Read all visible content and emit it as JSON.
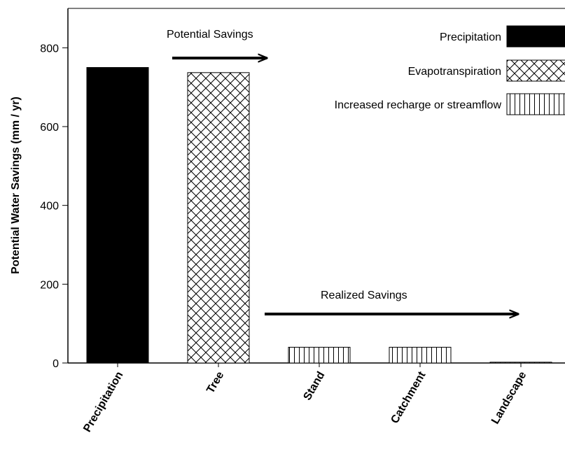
{
  "chart_data": {
    "type": "bar",
    "categories": [
      "Precipitation",
      "Tree",
      "Stand",
      "Catchment",
      "Landscape"
    ],
    "values": [
      750,
      737,
      40,
      40,
      2
    ],
    "bar_types": [
      "Precipitation",
      "Evapotranspiration",
      "Increased recharge or streamflow",
      "Increased recharge or streamflow",
      "Increased recharge or streamflow"
    ],
    "ylabel": "Potential Water Savings (mm / yr)",
    "ylim": [
      0,
      900
    ],
    "yticks": [
      0,
      200,
      400,
      600,
      800
    ],
    "legend": {
      "placement": "top-right",
      "entries": [
        {
          "label": "Precipitation",
          "pattern": "solid"
        },
        {
          "label": "Evapotranspiration",
          "pattern": "crosshatch"
        },
        {
          "label": "Increased recharge or streamflow",
          "pattern": "vertical"
        }
      ]
    },
    "annotations": [
      {
        "text": "Potential Savings",
        "arrow": "right"
      },
      {
        "text": "Realized Savings",
        "arrow": "right"
      }
    ],
    "grid": false
  }
}
